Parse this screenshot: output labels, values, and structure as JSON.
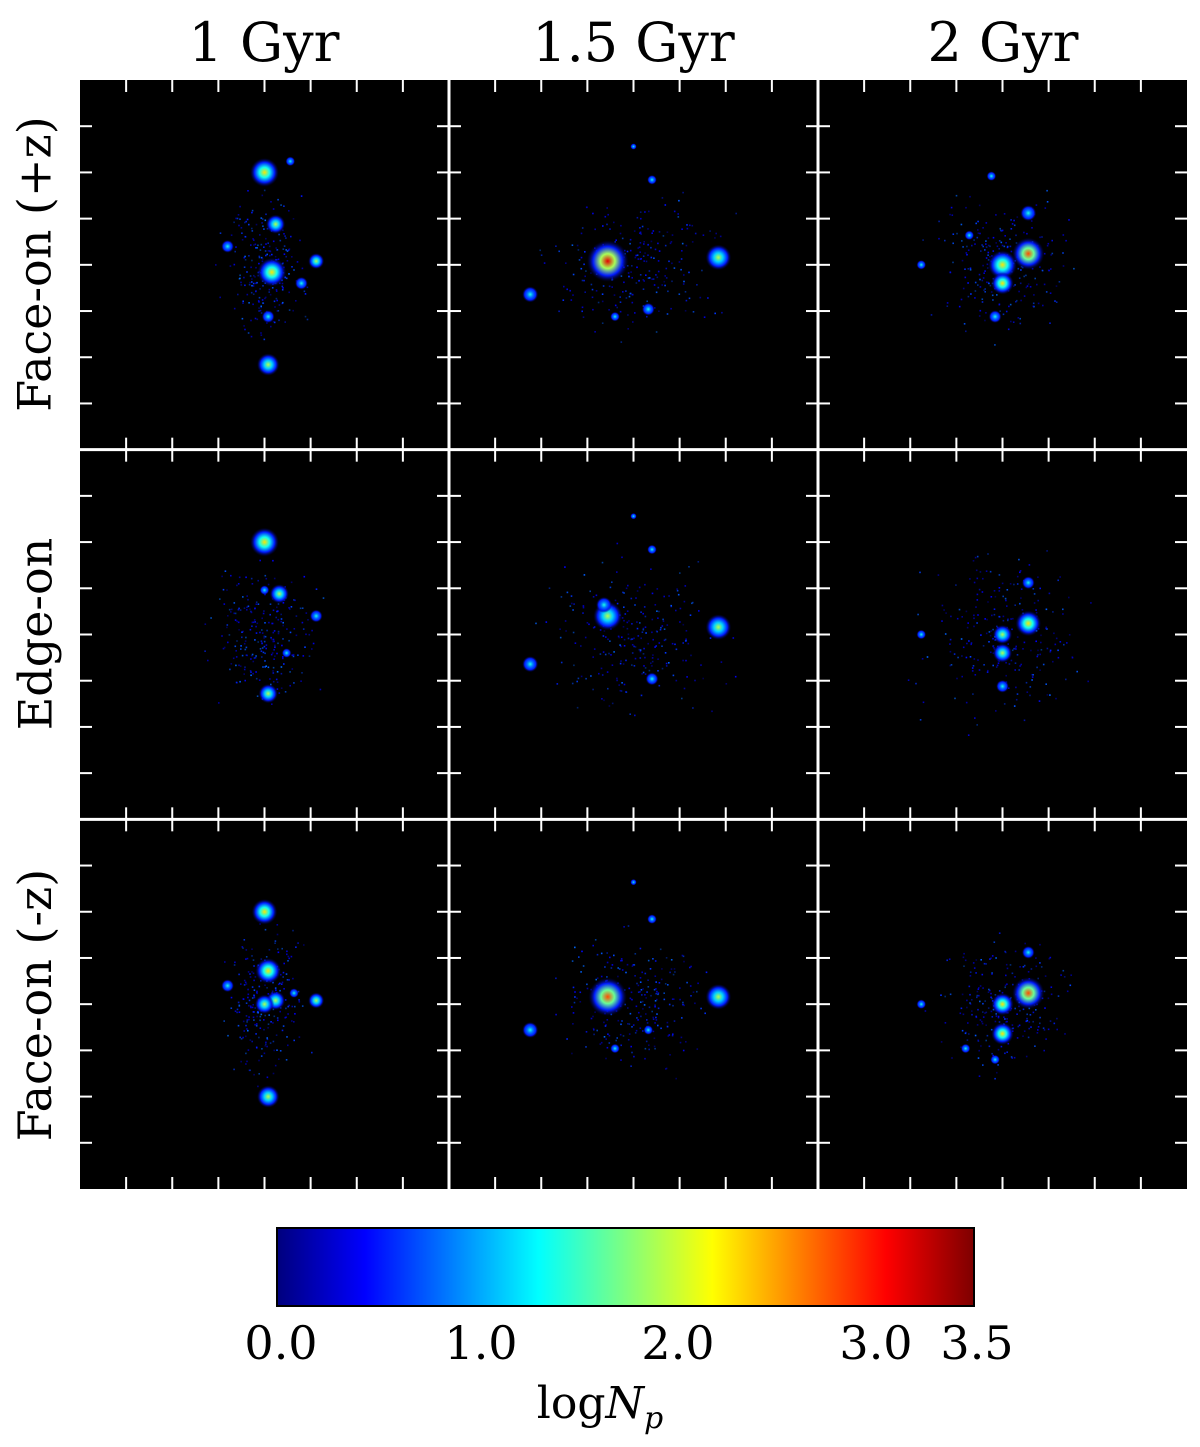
{
  "chart_data": {
    "type": "heatmap",
    "columns": [
      "1 Gyr",
      "1.5 Gyr",
      "2 Gyr"
    ],
    "rows": [
      "Face-on (+z)",
      "Edge-on",
      "Face-on (-z)"
    ],
    "colorbar": {
      "ticks": [
        "0.0",
        "1.0",
        "2.0",
        "3.0",
        "3.5"
      ],
      "tick_values": [
        0.0,
        1.0,
        2.0,
        3.0,
        3.5
      ],
      "range": [
        0.0,
        3.5
      ],
      "label_main": "log",
      "label_var": "N",
      "label_sub": "p",
      "colormap": "jet"
    },
    "background_color": "#000000",
    "divider_color": "#ffffff"
  }
}
